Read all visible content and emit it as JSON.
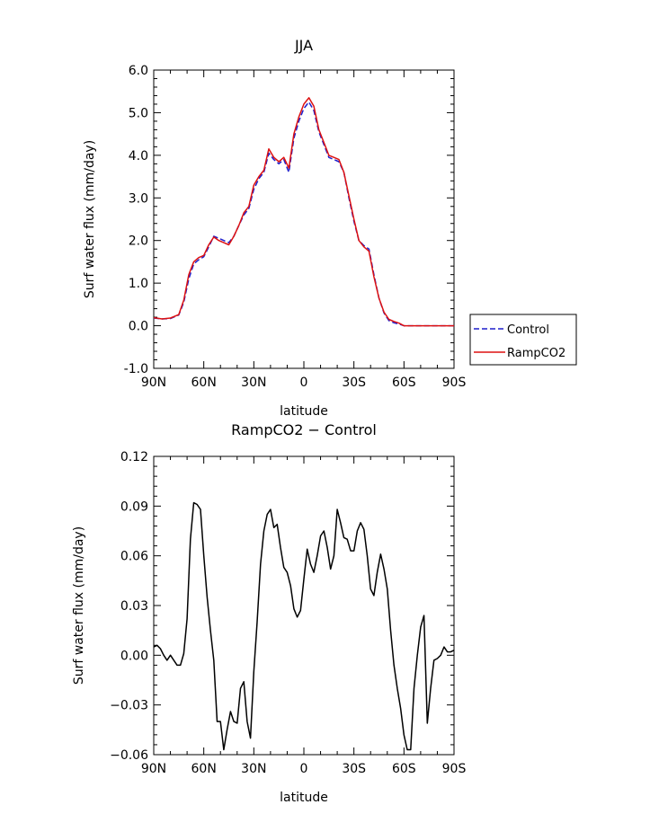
{
  "chart_data": [
    {
      "type": "line",
      "title": "JJA",
      "xlabel": "latitude",
      "ylabel": "Surf water flux (mm/day)",
      "xlim": [
        90,
        -90
      ],
      "ylim": [
        -1.0,
        6.0
      ],
      "x_ticks": [
        "90N",
        "60N",
        "30N",
        "0",
        "30S",
        "60S",
        "90S"
      ],
      "y_ticks": [
        "-1.0",
        "0.0",
        "1.0",
        "2.0",
        "3.0",
        "4.0",
        "5.0",
        "6.0"
      ],
      "legend": "right",
      "x": [
        90,
        85,
        80,
        75,
        72,
        69,
        66,
        63,
        60,
        57,
        54,
        51,
        48,
        45,
        42,
        39,
        36,
        33,
        30,
        27,
        24,
        21,
        18,
        15,
        12,
        9,
        6,
        3,
        0,
        -3,
        -6,
        -9,
        -12,
        -15,
        -18,
        -21,
        -24,
        -27,
        -30,
        -33,
        -36,
        -39,
        -42,
        -45,
        -48,
        -51,
        -54,
        -57,
        -60,
        -63,
        -66,
        -69,
        -72,
        -75,
        -78,
        -81,
        -84,
        -90
      ],
      "series": [
        {
          "name": "Control",
          "color": "#1f1fcc",
          "dash": true,
          "values": [
            0.18,
            0.16,
            0.17,
            0.25,
            0.55,
            1.1,
            1.45,
            1.55,
            1.62,
            1.85,
            2.1,
            2.05,
            2.0,
            1.95,
            2.1,
            2.35,
            2.6,
            2.75,
            3.2,
            3.45,
            3.6,
            4.05,
            3.9,
            3.8,
            3.9,
            3.6,
            4.4,
            4.8,
            5.1,
            5.25,
            5.05,
            4.55,
            4.25,
            3.95,
            3.9,
            3.85,
            3.6,
            3.0,
            2.45,
            2.0,
            1.88,
            1.8,
            1.2,
            0.65,
            0.3,
            0.12,
            0.07,
            0.04,
            0.0,
            0.0,
            0.0,
            0.0,
            0.0,
            0.0,
            0.0,
            0.0,
            0.0,
            0.0
          ]
        },
        {
          "name": "RampCO2",
          "color": "#dd1111",
          "dash": false,
          "values": [
            0.19,
            0.16,
            0.18,
            0.26,
            0.6,
            1.2,
            1.5,
            1.6,
            1.65,
            1.9,
            2.08,
            2.0,
            1.95,
            1.9,
            2.1,
            2.35,
            2.65,
            2.8,
            3.3,
            3.5,
            3.65,
            4.15,
            3.95,
            3.85,
            3.95,
            3.7,
            4.5,
            4.9,
            5.2,
            5.35,
            5.15,
            4.6,
            4.3,
            4.0,
            3.95,
            3.9,
            3.6,
            3.05,
            2.5,
            2.0,
            1.85,
            1.75,
            1.15,
            0.65,
            0.32,
            0.15,
            0.1,
            0.06,
            0.0,
            0.0,
            0.0,
            0.0,
            0.0,
            0.0,
            0.0,
            0.0,
            0.0,
            0.0
          ]
        }
      ]
    },
    {
      "type": "line",
      "title": "RampCO2 − Control",
      "xlabel": "latitude",
      "ylabel": "Surf water flux (mm/day)",
      "xlim": [
        90,
        -90
      ],
      "ylim": [
        -0.06,
        0.12
      ],
      "x_ticks": [
        "90N",
        "60N",
        "30N",
        "0",
        "30S",
        "60S",
        "90S"
      ],
      "y_ticks": [
        "−0.06",
        "−0.03",
        "0.00",
        "0.03",
        "0.06",
        "0.09",
        "0.12"
      ],
      "x": [
        90,
        88,
        86,
        84,
        82,
        80,
        78,
        76,
        74,
        72,
        70,
        68,
        66,
        64,
        62,
        60,
        58,
        56,
        54,
        52,
        50,
        48,
        46,
        44,
        42,
        40,
        38,
        36,
        34,
        32,
        30,
        28,
        26,
        24,
        22,
        20,
        18,
        16,
        14,
        12,
        10,
        8,
        6,
        4,
        2,
        0,
        -2,
        -4,
        -6,
        -8,
        -10,
        -12,
        -14,
        -16,
        -18,
        -20,
        -22,
        -24,
        -26,
        -28,
        -30,
        -32,
        -34,
        -36,
        -38,
        -40,
        -42,
        -44,
        -46,
        -48,
        -50,
        -52,
        -54,
        -56,
        -58,
        -60,
        -62,
        -64,
        -66,
        -68,
        -70,
        -72,
        -74,
        -76,
        -78,
        -80,
        -82,
        -84,
        -86,
        -88,
        -90
      ],
      "series": [
        {
          "name": "",
          "color": "#000000",
          "dash": false,
          "values": [
            0.005,
            0.006,
            0.004,
            0.0,
            -0.003,
            0.0,
            -0.003,
            -0.006,
            -0.006,
            0.001,
            0.022,
            0.07,
            0.092,
            0.091,
            0.088,
            0.06,
            0.035,
            0.015,
            -0.003,
            -0.04,
            -0.04,
            -0.057,
            -0.045,
            -0.034,
            -0.04,
            -0.041,
            -0.02,
            -0.016,
            -0.04,
            -0.05,
            -0.01,
            0.02,
            0.055,
            0.075,
            0.085,
            0.088,
            0.077,
            0.079,
            0.065,
            0.053,
            0.05,
            0.042,
            0.028,
            0.023,
            0.027,
            0.046,
            0.064,
            0.055,
            0.05,
            0.06,
            0.072,
            0.075,
            0.065,
            0.052,
            0.06,
            0.088,
            0.08,
            0.071,
            0.07,
            0.063,
            0.063,
            0.075,
            0.08,
            0.076,
            0.06,
            0.04,
            0.036,
            0.05,
            0.061,
            0.052,
            0.04,
            0.015,
            -0.006,
            -0.02,
            -0.032,
            -0.048,
            -0.057,
            -0.057,
            -0.02,
            0.0,
            0.017,
            0.024,
            -0.041,
            -0.02,
            -0.003,
            -0.002,
            0.0,
            0.005,
            0.002,
            0.002,
            0.003
          ]
        }
      ]
    }
  ]
}
